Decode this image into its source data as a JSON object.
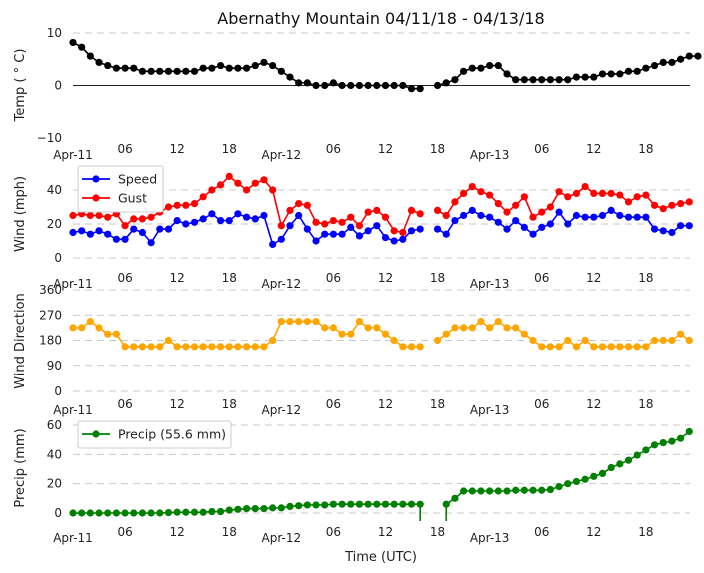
{
  "chart_data": [
    {
      "type": "line",
      "title": "Abernathy Mountain 04/11/18 - 04/13/18",
      "xlabel": "",
      "ylabel": "Temp ( ° C)",
      "ylim": [
        -10,
        10
      ],
      "yticks": [
        "10",
        "0",
        "−10"
      ],
      "ytick_values": [
        10,
        0,
        -10
      ],
      "grid": "dashed at top tick, solid zero line",
      "x_ticks": [
        "Apr-11",
        "06",
        "12",
        "18",
        "Apr-12",
        "06",
        "12",
        "18",
        "Apr-13",
        "06",
        "12",
        "18"
      ],
      "x_tick_hours": [
        0,
        6,
        12,
        18,
        24,
        30,
        36,
        42,
        48,
        54,
        60,
        66
      ],
      "x_unit": "hours since 2018-04-11 00:00 UTC",
      "series": [
        {
          "name": "Temp",
          "color": "#000000",
          "values": [
            8.2,
            7.3,
            5.6,
            4.4,
            3.8,
            3.3,
            3.3,
            3.3,
            2.7,
            2.7,
            2.7,
            2.7,
            2.7,
            2.7,
            2.7,
            3.3,
            3.3,
            3.8,
            3.3,
            3.3,
            3.3,
            3.8,
            4.4,
            3.8,
            2.7,
            1.6,
            0.5,
            0.5,
            0,
            0,
            0.5,
            0,
            0,
            0,
            0,
            0,
            0,
            0,
            0,
            -0.6,
            -0.6,
            null,
            0,
            0.5,
            1.1,
            2.7,
            3.3,
            3.3,
            3.8,
            3.8,
            2.2,
            1.1,
            1.1,
            1.1,
            1.1,
            1.1,
            1.1,
            1.1,
            1.6,
            1.6,
            1.6,
            2.2,
            2.2,
            2.2,
            2.7,
            2.7,
            3.3,
            3.8,
            4.4,
            4.4,
            5.0,
            5.6,
            5.6
          ]
        }
      ]
    },
    {
      "type": "line",
      "ylabel": "Wind (mph)",
      "ylim": [
        0,
        50
      ],
      "yticks": [
        "40",
        "20",
        "0"
      ],
      "ytick_values": [
        40,
        20,
        0
      ],
      "grid": true,
      "legend": "top-left",
      "x_ticks": [
        "Apr-11",
        "06",
        "12",
        "18",
        "Apr-12",
        "06",
        "12",
        "18",
        "Apr-13",
        "06",
        "12",
        "18"
      ],
      "x_tick_hours": [
        0,
        6,
        12,
        18,
        24,
        30,
        36,
        42,
        48,
        54,
        60,
        66
      ],
      "series": [
        {
          "name": "Speed",
          "color": "#0000ff",
          "values": [
            15,
            16,
            14,
            16,
            14,
            11,
            11,
            17,
            15,
            9,
            17,
            17,
            22,
            20,
            21,
            23,
            26,
            22,
            22,
            26,
            24,
            23,
            25,
            8,
            11,
            19,
            25,
            17,
            10,
            14,
            14,
            14,
            18,
            13,
            16,
            19,
            12,
            10,
            11,
            16,
            17,
            null,
            17,
            14,
            22,
            25,
            28,
            25,
            24,
            21,
            17,
            22,
            18,
            14,
            18,
            20,
            27,
            20,
            25,
            24,
            24,
            25,
            28,
            25,
            24,
            24,
            24,
            17,
            16,
            15,
            19,
            19
          ]
        },
        {
          "name": "Gust",
          "color": "#ff0000",
          "values": [
            25,
            26,
            25,
            25,
            24,
            26,
            19,
            23,
            23,
            24,
            27,
            30,
            31,
            31,
            32,
            36,
            40,
            43,
            48,
            44,
            40,
            44,
            46,
            40,
            19,
            28,
            32,
            31,
            21,
            20,
            22,
            21,
            24,
            19,
            27,
            28,
            24,
            16,
            15,
            28,
            26,
            null,
            28,
            25,
            33,
            38,
            42,
            39,
            37,
            32,
            27,
            31,
            36,
            24,
            27,
            30,
            39,
            36,
            38,
            42,
            38,
            38,
            38,
            37,
            33,
            36,
            37,
            31,
            29,
            31,
            32,
            33
          ]
        }
      ]
    },
    {
      "type": "line",
      "ylabel": "Wind Direction",
      "ylim": [
        0,
        360
      ],
      "yticks": [
        "360",
        "270",
        "180",
        "90",
        "0"
      ],
      "ytick_values": [
        360,
        270,
        180,
        90,
        0
      ],
      "grid": true,
      "x_ticks": [
        "Apr-11",
        "06",
        "12",
        "18",
        "Apr-12",
        "06",
        "12",
        "18",
        "Apr-13",
        "06",
        "12",
        "18"
      ],
      "x_tick_hours": [
        0,
        6,
        12,
        18,
        24,
        30,
        36,
        42,
        48,
        54,
        60,
        66
      ],
      "series": [
        {
          "name": "Direction",
          "color": "#ffa500",
          "values": [
            225,
            225,
            247.5,
            225,
            202.5,
            202.5,
            157.5,
            157.5,
            157.5,
            157.5,
            157.5,
            180,
            157.5,
            157.5,
            157.5,
            157.5,
            157.5,
            157.5,
            157.5,
            157.5,
            157.5,
            157.5,
            157.5,
            180,
            247.5,
            247.5,
            247.5,
            247.5,
            247.5,
            225,
            225,
            202.5,
            202.5,
            247.5,
            225,
            225,
            202.5,
            180,
            157.5,
            157.5,
            157.5,
            null,
            180,
            202.5,
            225,
            225,
            225,
            247.5,
            225,
            247.5,
            225,
            225,
            202.5,
            180,
            157.5,
            157.5,
            157.5,
            180,
            157.5,
            180,
            157.5,
            157.5,
            157.5,
            157.5,
            157.5,
            157.5,
            157.5,
            180,
            180,
            180,
            202.5,
            180
          ]
        }
      ]
    },
    {
      "type": "line",
      "xlabel": "Time (UTC)",
      "ylabel": "Precip (mm)",
      "ylim": [
        0,
        60
      ],
      "yticks": [
        "60",
        "40",
        "20",
        "0"
      ],
      "ytick_values": [
        60,
        40,
        20,
        0
      ],
      "grid": true,
      "legend": "top-left",
      "x_ticks": [
        "Apr-11",
        "06",
        "12",
        "18",
        "Apr-12",
        "06",
        "12",
        "18",
        "Apr-13",
        "06",
        "12",
        "18"
      ],
      "x_tick_hours": [
        0,
        6,
        12,
        18,
        24,
        30,
        36,
        42,
        48,
        54,
        60,
        66
      ],
      "series": [
        {
          "name": "Precip (55.6 mm)",
          "color": "#008000",
          "values": [
            0,
            0,
            0,
            0,
            0,
            0,
            0,
            0,
            0,
            0,
            0,
            0.3,
            0.5,
            0.5,
            0.5,
            0.5,
            1,
            1,
            2,
            2.5,
            3,
            3,
            3,
            3.5,
            3.5,
            4.5,
            5,
            5.5,
            5.5,
            5.5,
            6,
            6,
            6,
            6,
            6,
            6,
            6,
            6,
            6,
            6,
            6,
            "drop",
            "drop",
            6,
            10,
            15,
            15,
            15,
            15,
            15,
            15,
            15.5,
            15.5,
            15.5,
            15.5,
            16,
            18,
            20,
            21.5,
            23,
            25,
            27,
            31,
            33.5,
            36,
            39.5,
            43,
            46.5,
            48,
            49,
            51,
            55.6
          ],
          "note": "two readings near hour 40-42 drop below the plotted range (line segments fall off the bottom of the axis)"
        }
      ]
    }
  ]
}
